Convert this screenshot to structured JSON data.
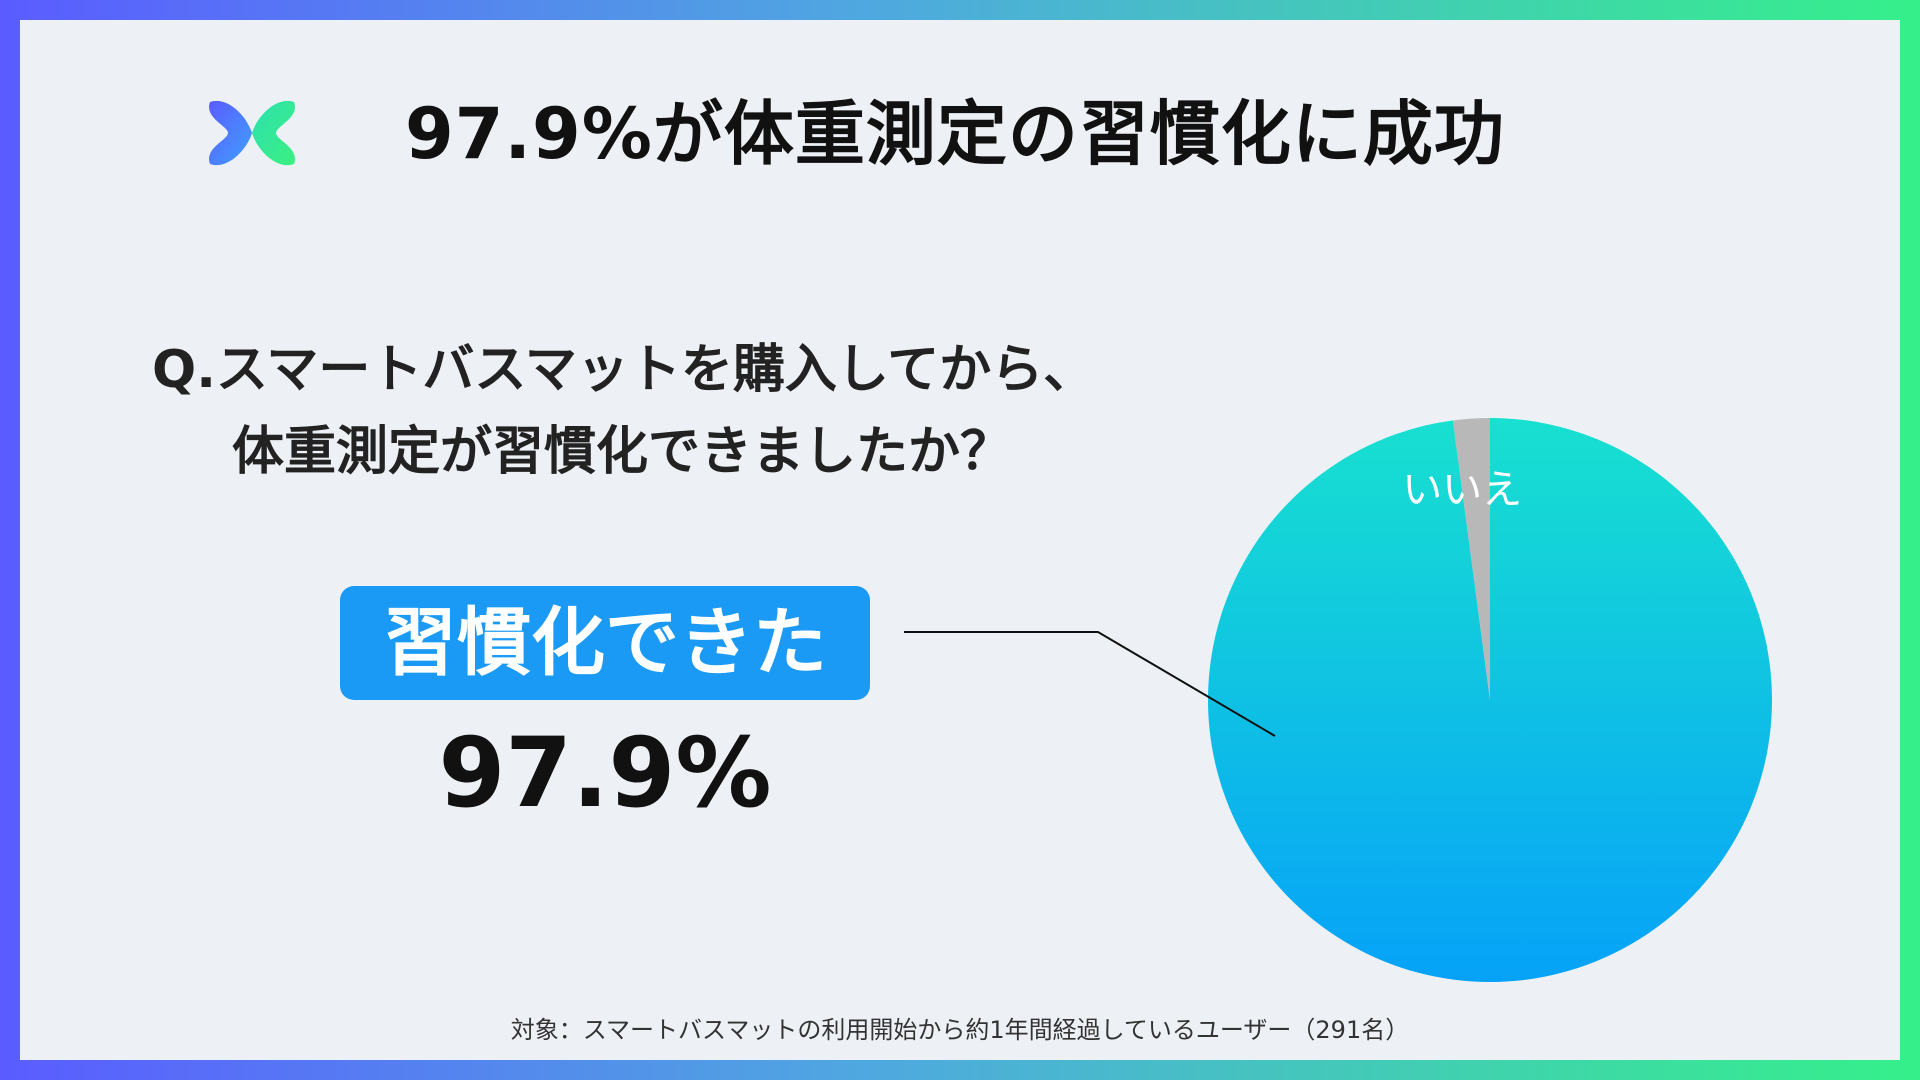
{
  "title": "97.9%が体重測定の習慣化に成功",
  "question": {
    "line1": "Q.スマートバスマットを購入してから、",
    "line2": "体重測定が習慣化できましたか？"
  },
  "highlight": {
    "label": "習慣化できた",
    "value": "97.9%"
  },
  "footnote": "対象：スマートバスマットの利用開始から約1年間経過しているユーザー（291名）",
  "colors": {
    "frame_start": "#5a5cff",
    "frame_end": "#35f08a",
    "panel": "#edf1f5",
    "accent_box": "#1a9af5",
    "pie_main_top": "#18e0d0",
    "pie_main_bottom": "#06a2f8",
    "pie_minor": "#b8b8b8"
  },
  "chart_data": {
    "type": "pie",
    "categories": [
      "習慣化できた",
      "いいえ"
    ],
    "values": [
      97.9,
      2.1
    ],
    "slice_labels": [
      "",
      "いいえ"
    ],
    "title": "",
    "legend": "none"
  }
}
